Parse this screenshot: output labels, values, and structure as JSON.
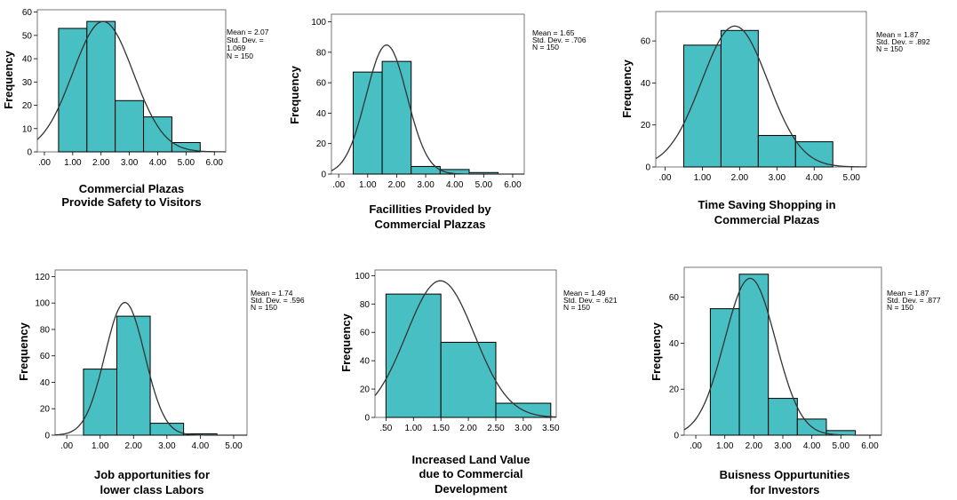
{
  "style": {
    "bar_fill": "#48BFC2",
    "bar_stroke": "#000000",
    "curve_color": "#333333"
  },
  "chart_data": [
    {
      "type": "bar",
      "bin_width": 1,
      "bins": [
        {
          "x0": 0.5,
          "x1": 1.5,
          "count": 53
        },
        {
          "x0": 1.5,
          "x1": 2.5,
          "count": 56
        },
        {
          "x0": 2.5,
          "x1": 3.5,
          "count": 22
        },
        {
          "x0": 3.5,
          "x1": 4.5,
          "count": 15
        },
        {
          "x0": 4.5,
          "x1": 5.5,
          "count": 4
        }
      ],
      "xlim": [
        -0.25,
        6.4
      ],
      "ylim": [
        0,
        61
      ],
      "xticks": [
        0,
        1,
        2,
        3,
        4,
        5,
        6
      ],
      "xtick_labels": [
        ".00",
        "1.00",
        "2.00",
        "3.00",
        "4.00",
        "5.00",
        "6.00"
      ],
      "yticks": [
        0,
        10,
        20,
        30,
        40,
        50,
        60
      ],
      "ylabel": "Frequency",
      "xlabel_lines": [
        "Commercial Plazas",
        "Provide Safety to Visitors"
      ],
      "stats_lines": [
        "Mean = 2.07",
        "Std. Dev. =",
        "1.069",
        "N = 150"
      ],
      "mean": 2.07,
      "sd": 1.069,
      "n": 150
    },
    {
      "type": "bar",
      "bin_width": 1,
      "bins": [
        {
          "x0": 0.5,
          "x1": 1.5,
          "count": 67
        },
        {
          "x0": 1.5,
          "x1": 2.5,
          "count": 74
        },
        {
          "x0": 2.5,
          "x1": 3.5,
          "count": 5
        },
        {
          "x0": 3.5,
          "x1": 4.5,
          "count": 3
        },
        {
          "x0": 4.5,
          "x1": 5.5,
          "count": 1
        }
      ],
      "xlim": [
        -0.25,
        6.4
      ],
      "ylim": [
        0,
        105
      ],
      "xticks": [
        0,
        1,
        2,
        3,
        4,
        5,
        6
      ],
      "xtick_labels": [
        ".00",
        "1.00",
        "2.00",
        "3.00",
        "4.00",
        "5.00",
        "6.00"
      ],
      "yticks": [
        0,
        20,
        40,
        60,
        80,
        100
      ],
      "ylabel": "Frequency",
      "xlabel_lines": [
        "Facillities Provided by",
        "Commercial Plazzas"
      ],
      "stats_lines": [
        "Mean = 1.65",
        "Std. Dev. = .706",
        "N = 150"
      ],
      "mean": 1.65,
      "sd": 0.706,
      "n": 150
    },
    {
      "type": "bar",
      "bin_width": 1,
      "bins": [
        {
          "x0": 0.5,
          "x1": 1.5,
          "count": 58
        },
        {
          "x0": 1.5,
          "x1": 2.5,
          "count": 65
        },
        {
          "x0": 2.5,
          "x1": 3.5,
          "count": 15
        },
        {
          "x0": 3.5,
          "x1": 4.5,
          "count": 12
        }
      ],
      "xlim": [
        -0.25,
        5.4
      ],
      "ylim": [
        0,
        74
      ],
      "xticks": [
        0,
        1,
        2,
        3,
        4,
        5
      ],
      "xtick_labels": [
        ".00",
        "1.00",
        "2.00",
        "3.00",
        "4.00",
        "5.00"
      ],
      "yticks": [
        0,
        20,
        40,
        60
      ],
      "ylabel": "Frequency",
      "xlabel_lines": [
        "Time Saving Shopping in",
        "Commercial Plazas"
      ],
      "stats_lines": [
        "Mean = 1.87",
        "Std. Dev. = .892",
        "N = 150"
      ],
      "mean": 1.87,
      "sd": 0.892,
      "n": 150
    },
    {
      "type": "bar",
      "bin_width": 1,
      "bins": [
        {
          "x0": 0.5,
          "x1": 1.5,
          "count": 50
        },
        {
          "x0": 1.5,
          "x1": 2.5,
          "count": 90
        },
        {
          "x0": 2.5,
          "x1": 3.5,
          "count": 9
        },
        {
          "x0": 3.5,
          "x1": 4.5,
          "count": 1
        }
      ],
      "xlim": [
        -0.35,
        5.4
      ],
      "ylim": [
        0,
        125
      ],
      "xticks": [
        0,
        1,
        2,
        3,
        4,
        5
      ],
      "xtick_labels": [
        ".00",
        "1.00",
        "2.00",
        "3.00",
        "4.00",
        "5.00"
      ],
      "yticks": [
        0,
        20,
        40,
        60,
        80,
        100,
        120
      ],
      "ylabel": "Frequency",
      "xlabel_lines": [
        "Job apportunities for",
        "lower class Labors"
      ],
      "stats_lines": [
        "Mean = 1.74",
        "Std. Dev. = .596",
        "N = 150"
      ],
      "mean": 1.74,
      "sd": 0.596,
      "n": 150
    },
    {
      "type": "bar",
      "bin_width": 1,
      "bins": [
        {
          "x0": 0.5,
          "x1": 1.5,
          "count": 87
        },
        {
          "x0": 1.5,
          "x1": 2.5,
          "count": 53
        },
        {
          "x0": 2.5,
          "x1": 3.5,
          "count": 10
        }
      ],
      "xlim": [
        0.3,
        3.6
      ],
      "ylim": [
        0,
        104
      ],
      "xticks": [
        0.5,
        1.0,
        1.5,
        2.0,
        2.5,
        3.0,
        3.5
      ],
      "xtick_labels": [
        ".50",
        "1.00",
        "1.50",
        "2.00",
        "2.50",
        "3.00",
        "3.50"
      ],
      "yticks": [
        0,
        20,
        40,
        60,
        80,
        100
      ],
      "ylabel": "Frequency",
      "xlabel_lines": [
        "Increased Land Value",
        "due to Commercial",
        "Development"
      ],
      "stats_lines": [
        "Mean = 1.49",
        "Std. Dev. = .621",
        "N = 150"
      ],
      "mean": 1.49,
      "sd": 0.621,
      "n": 150
    },
    {
      "type": "bar",
      "bin_width": 1,
      "bins": [
        {
          "x0": 0.5,
          "x1": 1.5,
          "count": 55
        },
        {
          "x0": 1.5,
          "x1": 2.5,
          "count": 70
        },
        {
          "x0": 2.5,
          "x1": 3.5,
          "count": 16
        },
        {
          "x0": 3.5,
          "x1": 4.5,
          "count": 7
        },
        {
          "x0": 4.5,
          "x1": 5.5,
          "count": 2
        }
      ],
      "xlim": [
        -0.4,
        6.4
      ],
      "ylim": [
        0,
        73
      ],
      "xticks": [
        0,
        1,
        2,
        3,
        4,
        5,
        6
      ],
      "xtick_labels": [
        ".00",
        "1.00",
        "2.00",
        "3.00",
        "4.00",
        "5.00",
        "6.00"
      ],
      "yticks": [
        0,
        20,
        40,
        60
      ],
      "ylabel": "Frequency",
      "xlabel_lines": [
        "Buisness Oppurtunities",
        "for Investors"
      ],
      "stats_lines": [
        "Mean = 1.87",
        "Std. Dev. = .877",
        "N = 150"
      ],
      "mean": 1.87,
      "sd": 0.877,
      "n": 150
    }
  ]
}
